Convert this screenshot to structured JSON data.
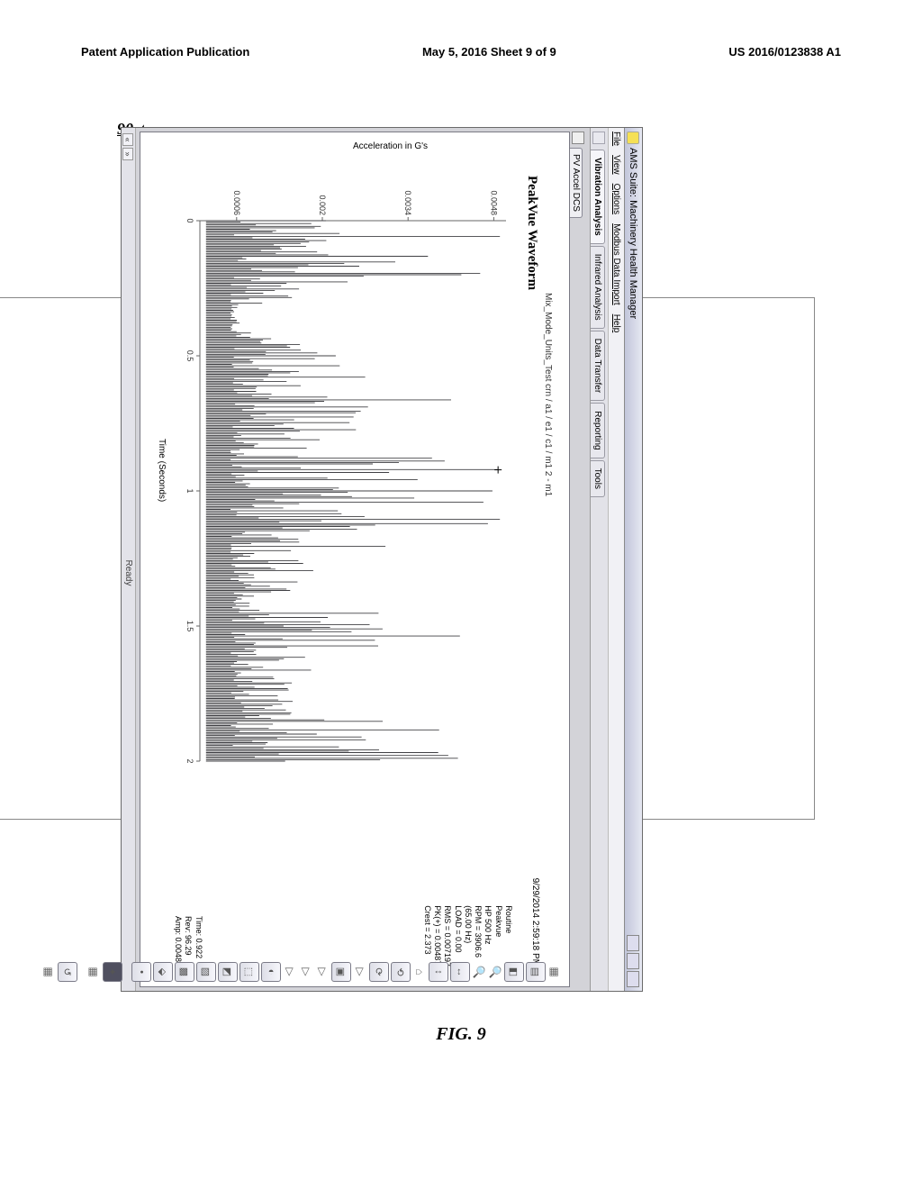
{
  "pageHeader": {
    "left": "Patent Application Publication",
    "center": "May 5, 2016  Sheet 9 of 9",
    "right": "US 2016/0123838 A1"
  },
  "figCaption": "FIG.  9",
  "callout": "90",
  "window": {
    "title": "AMS Suite: Machinery Health Manager",
    "menus": [
      "File",
      "View",
      "Options",
      "Modbus Data Import",
      "Help"
    ],
    "tabs": [
      "Vibration Analysis",
      "Infrared Analysis",
      "Data Transfer",
      "Reporting",
      "Tools"
    ],
    "activeTab": "Vibration Analysis",
    "innerTab": "PV Accel DCS",
    "status": "Ready",
    "navLeft": "«",
    "navRight": "»"
  },
  "chart": {
    "type": "waveform",
    "path": "Mix_Mode_Units_Test crn / a1 / e1 / c1 / m1 2 - m1",
    "title": "PeakVue Waveform",
    "timestamp": "9/29/2014 2:59:18 PM",
    "meta": [
      "Routine",
      "Peakvue",
      "HP 500 Hz",
      "RPM = 3906.6",
      "(65.00 Hz)",
      "LOAD = 0.00",
      "RMS = 0.007197",
      "PK(+) = 0.00487",
      "Crest = 2.373"
    ],
    "cursor": [
      "Time: 0.922",
      "Rev: 96.29",
      "Amp: 0.00487"
    ],
    "yLabel": "Acceleration in G's",
    "xLabel": "Time (Seconds)",
    "yTicks": [
      "0.0006",
      "0.002",
      "0.0034",
      "0.0048"
    ],
    "xTicks": [
      "0",
      "0.5",
      "1",
      "1.5",
      "2"
    ],
    "background_color": "#ffffff",
    "axis_color": "#666666",
    "line_color": "#404044",
    "xlim": [
      0,
      2
    ],
    "ylim": [
      0,
      0.005
    ],
    "peakAmp": 0.00487,
    "baseline": 0.0005,
    "density": 380,
    "seed": 7
  },
  "toolbarIcons": [
    "layer-icon",
    "zoom-box-icon",
    "hand-icon",
    "rewind-icon",
    "forward-icon",
    "cursor-icon",
    "cursor-add-icon",
    "range-icon",
    "chart-icon",
    "legend-icon",
    "tag-icon",
    "harmonic-icon",
    "sideband-icon",
    "marker-icon",
    "info-icon",
    "reset-icon",
    "palette-icon"
  ]
}
